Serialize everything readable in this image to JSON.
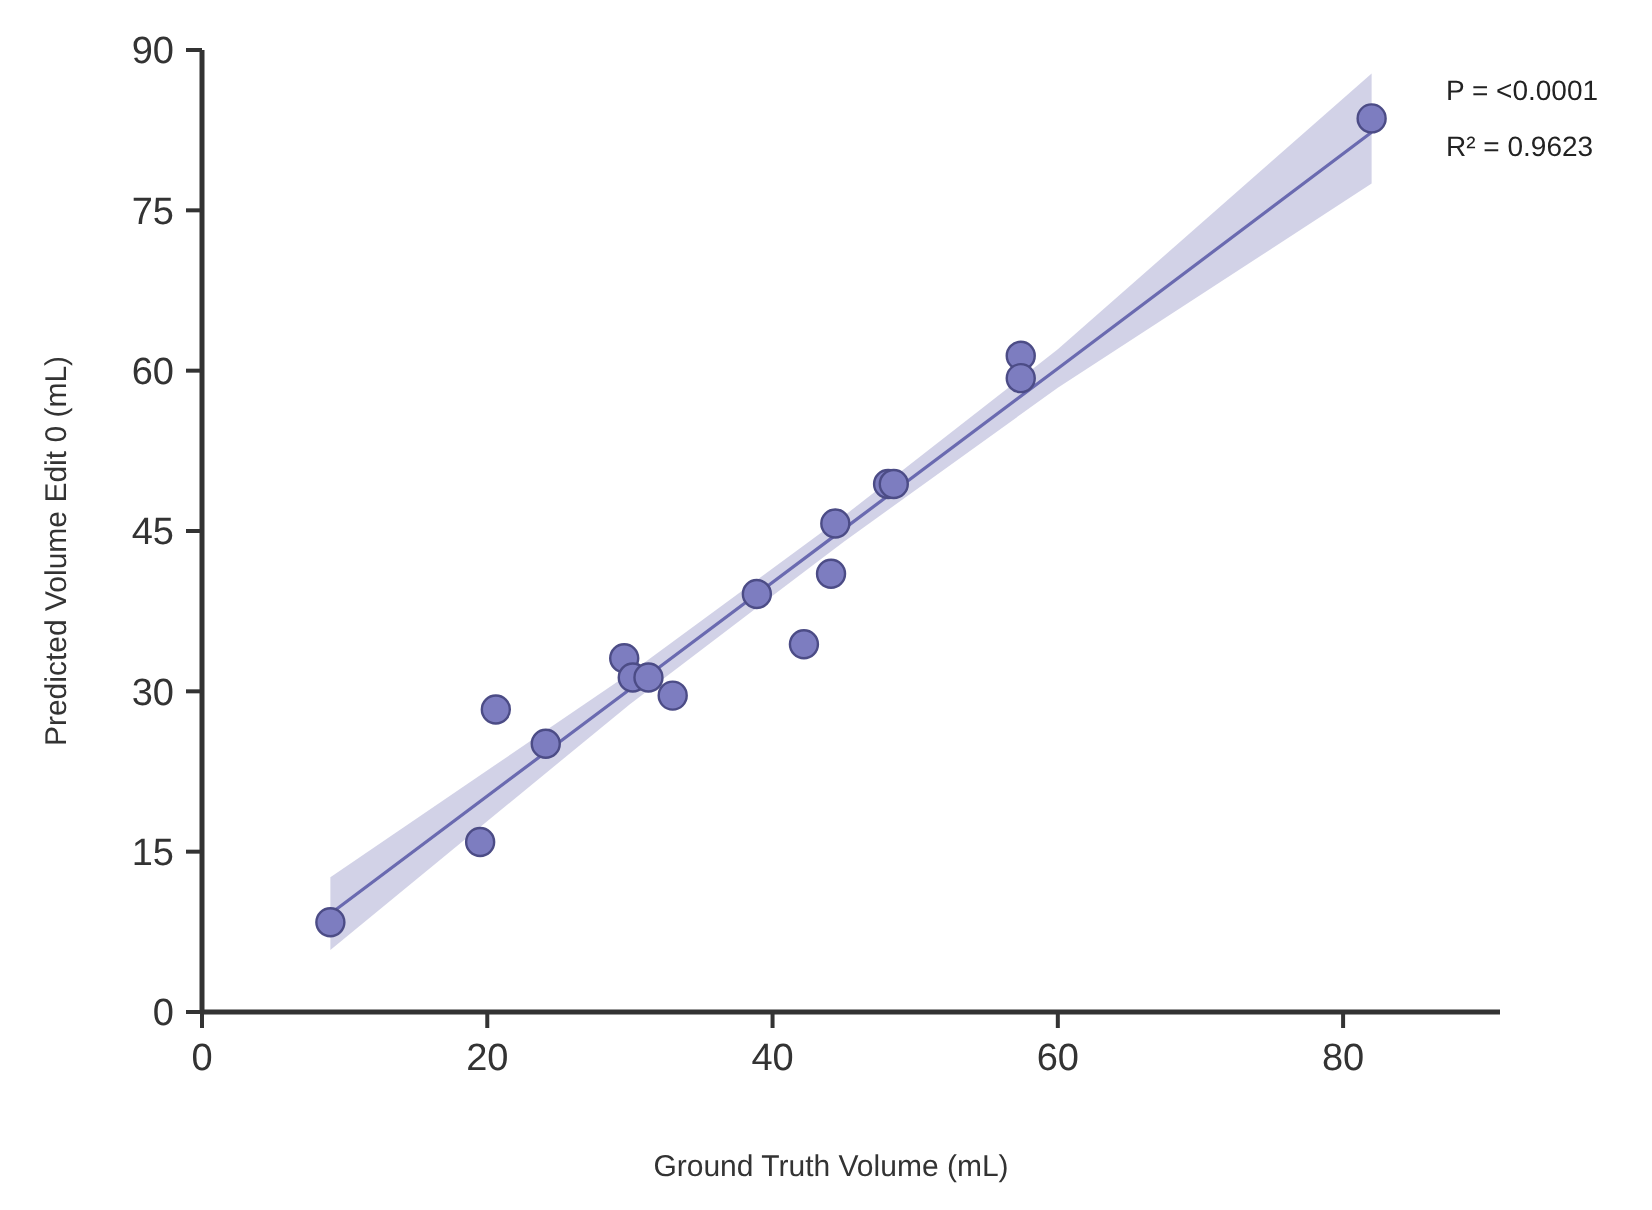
{
  "chart_data": {
    "type": "scatter",
    "xlabel": "Ground Truth Volume (mL)",
    "ylabel": "Predicted Volume Edit 0 (mL)",
    "xlim": [
      0,
      91
    ],
    "xticks": [
      0,
      20,
      40,
      60,
      80
    ],
    "ylim": [
      0,
      90
    ],
    "yticks": [
      0,
      15,
      30,
      45,
      60,
      75,
      90
    ],
    "grid": false,
    "marker": "circle",
    "annotations": [
      "P = <0.0001",
      "R² = 0.9623"
    ],
    "series": [
      {
        "type": "line",
        "marker": "none",
        "color": "#6a6ab0",
        "x": [
          9,
          30,
          45,
          60,
          82
        ],
        "values": [
          9.2,
          30.2,
          45.2,
          60.2,
          82.3
        ],
        "lower": [
          5.8,
          28.8,
          44,
          58.4,
          77.5
        ],
        "upper": [
          12.6,
          31.7,
          46.4,
          62,
          87.8
        ]
      },
      {
        "color": "#7d7dc0",
        "x": [
          9,
          19.5,
          20.6,
          24.1,
          29.6,
          30.2,
          31.3,
          33,
          38.9,
          42.2,
          44.1,
          44.4,
          48.1,
          48.5,
          57.4,
          57.4,
          82
        ],
        "values": [
          8.4,
          15.9,
          28.3,
          25.1,
          33.1,
          31.3,
          31.3,
          29.6,
          39.1,
          34.4,
          41,
          45.7,
          49.4,
          49.4,
          61.4,
          59.3,
          83.6
        ]
      }
    ]
  }
}
